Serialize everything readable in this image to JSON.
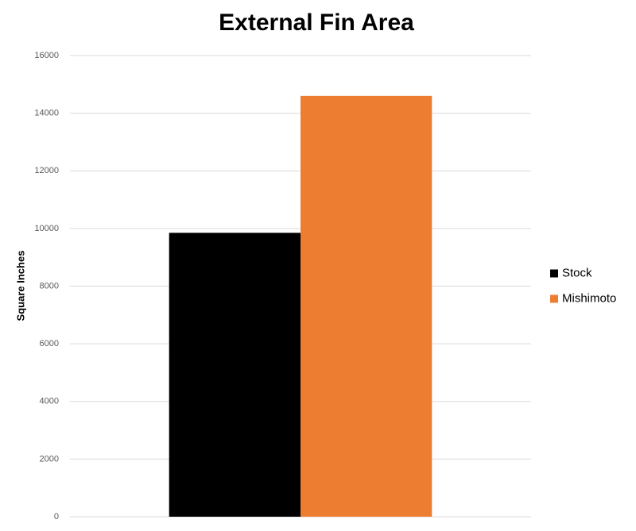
{
  "chart_data": {
    "type": "bar",
    "title": "External Fin Area",
    "y_label": "Square Inches",
    "categories": [
      null
    ],
    "series": [
      {
        "name": "Stock",
        "color": "#000000",
        "values": [
          9850
        ]
      },
      {
        "name": "Mishimoto",
        "color": "#ed7d31",
        "values": [
          14600
        ]
      }
    ],
    "ylim": [
      0,
      16000
    ],
    "yticks": [
      0,
      2000,
      4000,
      6000,
      8000,
      10000,
      12000,
      14000,
      16000
    ],
    "grid": true,
    "legend": "right"
  }
}
